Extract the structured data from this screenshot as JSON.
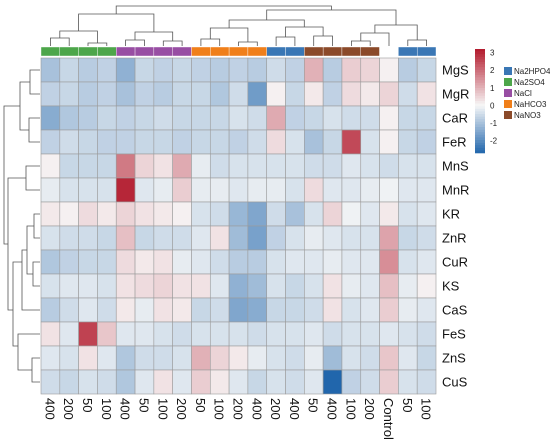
{
  "chart_data": {
    "type": "heatmap",
    "columns": [
      "400",
      "200",
      "50",
      "100",
      "400",
      "50",
      "100",
      "200",
      "50",
      "100",
      "200",
      "400",
      "200",
      "400",
      "50",
      "400",
      "100",
      "200",
      "Control",
      "50",
      "100"
    ],
    "rows": [
      "MgS",
      "MgR",
      "CaR",
      "FeR",
      "MnS",
      "MnR",
      "KR",
      "ZnR",
      "CuR",
      "KS",
      "CaS",
      "FeS",
      "ZnS",
      "CuS"
    ],
    "column_groups": [
      "Na2SO4",
      "Na2SO4",
      "Na2SO4",
      "Na2SO4",
      "NaCl",
      "NaCl",
      "NaCl",
      "NaCl",
      "NaHCO3",
      "NaHCO3",
      "NaHCO3",
      "NaHCO3",
      "Na2HPO4",
      "Na2HPO4",
      "NaNO3",
      "NaNO3",
      "NaNO3",
      "NaNO3",
      "",
      "Na2HPO4",
      "Na2HPO4"
    ],
    "legend": {
      "entries": [
        {
          "name": "Na2HPO4",
          "color": "#3a77b5"
        },
        {
          "name": "Na2SO4",
          "color": "#4da64a"
        },
        {
          "name": "NaCl",
          "color": "#984ea3"
        },
        {
          "name": "NaHCO3",
          "color": "#f07f1a"
        },
        {
          "name": "NaNO3",
          "color": "#8b4a2a"
        }
      ],
      "placement": "right"
    },
    "colorbar": {
      "ticks": [
        "3",
        "2",
        "1",
        "0",
        "-1",
        "-2"
      ],
      "range": [
        -2.7,
        3.2
      ],
      "low_color": "#2166ac",
      "mid_color": "#f7f7f7",
      "high_color": "#b2182b"
    },
    "values": [
      [
        -1.0,
        -0.6,
        -0.8,
        -0.7,
        -1.3,
        -0.6,
        -0.7,
        -0.6,
        -0.7,
        -0.8,
        -0.7,
        -0.8,
        -0.5,
        -0.7,
        1.0,
        -0.8,
        0.6,
        0.5,
        0.1,
        -0.8,
        -0.6
      ],
      [
        -0.7,
        -0.6,
        -0.8,
        -0.7,
        -1.0,
        -0.7,
        -0.8,
        -0.6,
        -0.6,
        -0.9,
        -0.5,
        -1.7,
        0.1,
        -0.6,
        0.2,
        -0.7,
        0.4,
        0.2,
        0.5,
        -0.5,
        0.3
      ],
      [
        -1.4,
        -0.9,
        -0.8,
        -0.6,
        -0.7,
        -0.6,
        -0.5,
        -0.6,
        -0.6,
        -0.6,
        -0.4,
        -0.5,
        1.1,
        -0.7,
        -0.6,
        -0.4,
        -0.5,
        -0.5,
        0.1,
        -0.6,
        -0.6
      ],
      [
        -0.7,
        -0.5,
        -0.6,
        -0.7,
        -0.7,
        -0.6,
        -0.6,
        -0.7,
        -0.6,
        -0.6,
        -0.7,
        -0.5,
        0.4,
        -0.4,
        -1.0,
        -0.6,
        2.5,
        -0.4,
        0.1,
        -0.6,
        -0.7
      ],
      [
        0.1,
        -0.6,
        -0.6,
        -0.6,
        1.8,
        0.5,
        0.3,
        1.1,
        -0.2,
        -0.5,
        -0.4,
        -0.4,
        -0.4,
        -0.4,
        -0.5,
        -0.5,
        -0.3,
        -0.4,
        -0.5,
        -0.4,
        -0.4
      ],
      [
        -0.2,
        -0.4,
        -0.4,
        -0.4,
        3.0,
        -0.3,
        -0.2,
        0.6,
        -0.2,
        -0.2,
        -0.3,
        -0.2,
        -0.2,
        -0.4,
        0.4,
        -0.3,
        -0.3,
        -0.2,
        -0.1,
        -0.3,
        -0.3
      ],
      [
        0.2,
        0.1,
        0.4,
        0.2,
        0.5,
        0.3,
        0.2,
        0.1,
        -0.4,
        -0.5,
        -1.2,
        -1.5,
        -0.5,
        -1.0,
        -0.4,
        0.5,
        -0.1,
        -0.3,
        0.2,
        -0.4,
        -0.3
      ],
      [
        -0.4,
        -0.5,
        -0.5,
        -0.6,
        0.8,
        -0.6,
        -0.5,
        -0.5,
        -0.3,
        0.3,
        -1.1,
        -1.6,
        -0.7,
        -0.4,
        -0.2,
        -0.3,
        -0.4,
        -0.4,
        1.2,
        -0.6,
        -0.5
      ],
      [
        -0.9,
        -0.7,
        -0.6,
        -0.6,
        0.4,
        0.2,
        0.3,
        -0.2,
        -0.3,
        -0.5,
        -0.8,
        -0.8,
        -0.4,
        -0.3,
        -0.3,
        -0.2,
        -0.3,
        -0.3,
        1.5,
        -0.4,
        -0.3
      ],
      [
        -0.4,
        -0.3,
        -0.3,
        -0.4,
        0.3,
        0.4,
        0.5,
        0.3,
        0.3,
        -0.3,
        -1.3,
        -1.1,
        -0.4,
        -0.6,
        -0.4,
        0.3,
        -0.2,
        -0.3,
        0.8,
        -0.2,
        0.1
      ],
      [
        -0.8,
        -0.5,
        -0.3,
        -0.5,
        0.2,
        -0.2,
        0.3,
        0.2,
        -0.6,
        -0.5,
        -1.5,
        -1.4,
        -0.6,
        -0.6,
        -0.5,
        0.3,
        -0.4,
        -0.3,
        0.6,
        -0.2,
        -0.3
      ],
      [
        0.3,
        -0.3,
        2.6,
        0.7,
        -0.3,
        -0.3,
        -0.4,
        -0.5,
        -0.4,
        -0.4,
        -0.4,
        -0.5,
        -0.4,
        -0.4,
        -0.3,
        -0.5,
        -0.4,
        -0.4,
        -0.3,
        -0.4,
        -0.5
      ],
      [
        -0.3,
        -0.4,
        0.3,
        -0.3,
        -0.9,
        -0.5,
        -0.5,
        -0.4,
        1.0,
        0.5,
        0.2,
        -0.2,
        -0.4,
        -0.5,
        -0.2,
        -1.1,
        -0.4,
        -0.5,
        0.7,
        -0.3,
        -0.6
      ],
      [
        -0.5,
        -0.6,
        -0.4,
        -0.5,
        -0.9,
        -0.3,
        0.3,
        -0.3,
        0.6,
        0.2,
        -0.3,
        -0.6,
        -0.4,
        -0.5,
        -0.3,
        -2.7,
        -0.7,
        -0.5,
        0.6,
        -0.4,
        -0.5
      ]
    ]
  }
}
